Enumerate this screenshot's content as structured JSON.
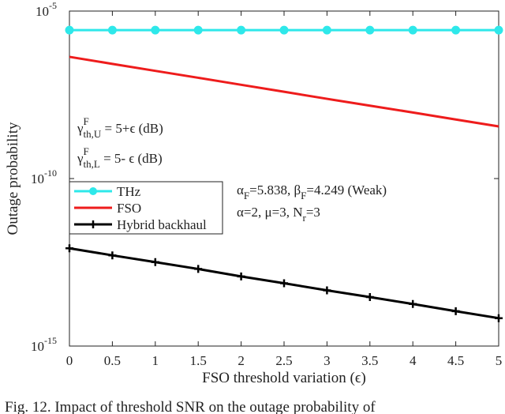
{
  "chart_data": {
    "type": "line",
    "x": [
      0,
      0.5,
      1,
      1.5,
      2,
      2.5,
      3,
      3.5,
      4,
      4.5,
      5
    ],
    "series": [
      {
        "name": "THz",
        "color": "#2ee8ea",
        "marker": "circle",
        "values": [
          2.7e-06,
          2.7e-06,
          2.7e-06,
          2.7e-06,
          2.7e-06,
          2.7e-06,
          2.7e-06,
          2.7e-06,
          2.7e-06,
          2.7e-06,
          2.7e-06
        ]
      },
      {
        "name": "FSO",
        "color": "#ee1c1c",
        "marker": "none",
        "values": [
          4.3e-07,
          2.65e-07,
          1.64e-07,
          1.02e-07,
          6.3e-08,
          3.9e-08,
          2.4e-08,
          1.5e-08,
          9.4e-09,
          5.8e-09,
          3.6e-09
        ]
      },
      {
        "name": "Hybrid backhaul",
        "color": "#000000",
        "marker": "plus",
        "values": [
          8.3e-13,
          5.1e-13,
          3.2e-13,
          2e-13,
          1.2e-13,
          7.5e-14,
          4.6e-14,
          2.9e-14,
          1.8e-14,
          1.1e-14,
          6.8e-15
        ]
      }
    ],
    "xlim": [
      0,
      5
    ],
    "xticks": [
      0,
      0.5,
      1,
      1.5,
      2,
      2.5,
      3,
      3.5,
      4,
      4.5,
      5
    ],
    "ylim": [
      1e-15,
      1e-05
    ],
    "yscale": "log",
    "yticks": [
      {
        "value": 1e-15,
        "label": "10",
        "exponent": "-15"
      },
      {
        "value": 1e-10,
        "label": "10",
        "exponent": "-10"
      },
      {
        "value": 1e-05,
        "label": "10",
        "exponent": "-5"
      }
    ],
    "xlabel": "FSO threshold variation (ϵ)",
    "ylabel": "Outage probability",
    "legend": "left",
    "annotations": [
      [
        {
          "text": "γ",
          "pos": "base"
        },
        {
          "text": "F",
          "pos": "sup"
        },
        {
          "text": "th,U",
          "pos": "sub"
        },
        {
          "text": " = 5+ϵ (dB)",
          "pos": "base"
        }
      ],
      [
        {
          "text": "γ",
          "pos": "base"
        },
        {
          "text": "F",
          "pos": "sup"
        },
        {
          "text": "th,L",
          "pos": "sub"
        },
        {
          "text": " = 5- ϵ (dB)",
          "pos": "base"
        }
      ],
      [
        {
          "text": "α",
          "pos": "base"
        },
        {
          "text": "F",
          "pos": "sub"
        },
        {
          "text": "=5.838, β",
          "pos": "base"
        },
        {
          "text": "F",
          "pos": "sub"
        },
        {
          "text": "=4.249 (Weak)",
          "pos": "base"
        }
      ],
      [
        {
          "text": "α=2, μ=3, N",
          "pos": "base"
        },
        {
          "text": "r",
          "pos": "sub"
        },
        {
          "text": "=3",
          "pos": "base"
        }
      ]
    ],
    "caption": "Fig. 12.  Impact of threshold SNR on the outage probability of"
  }
}
